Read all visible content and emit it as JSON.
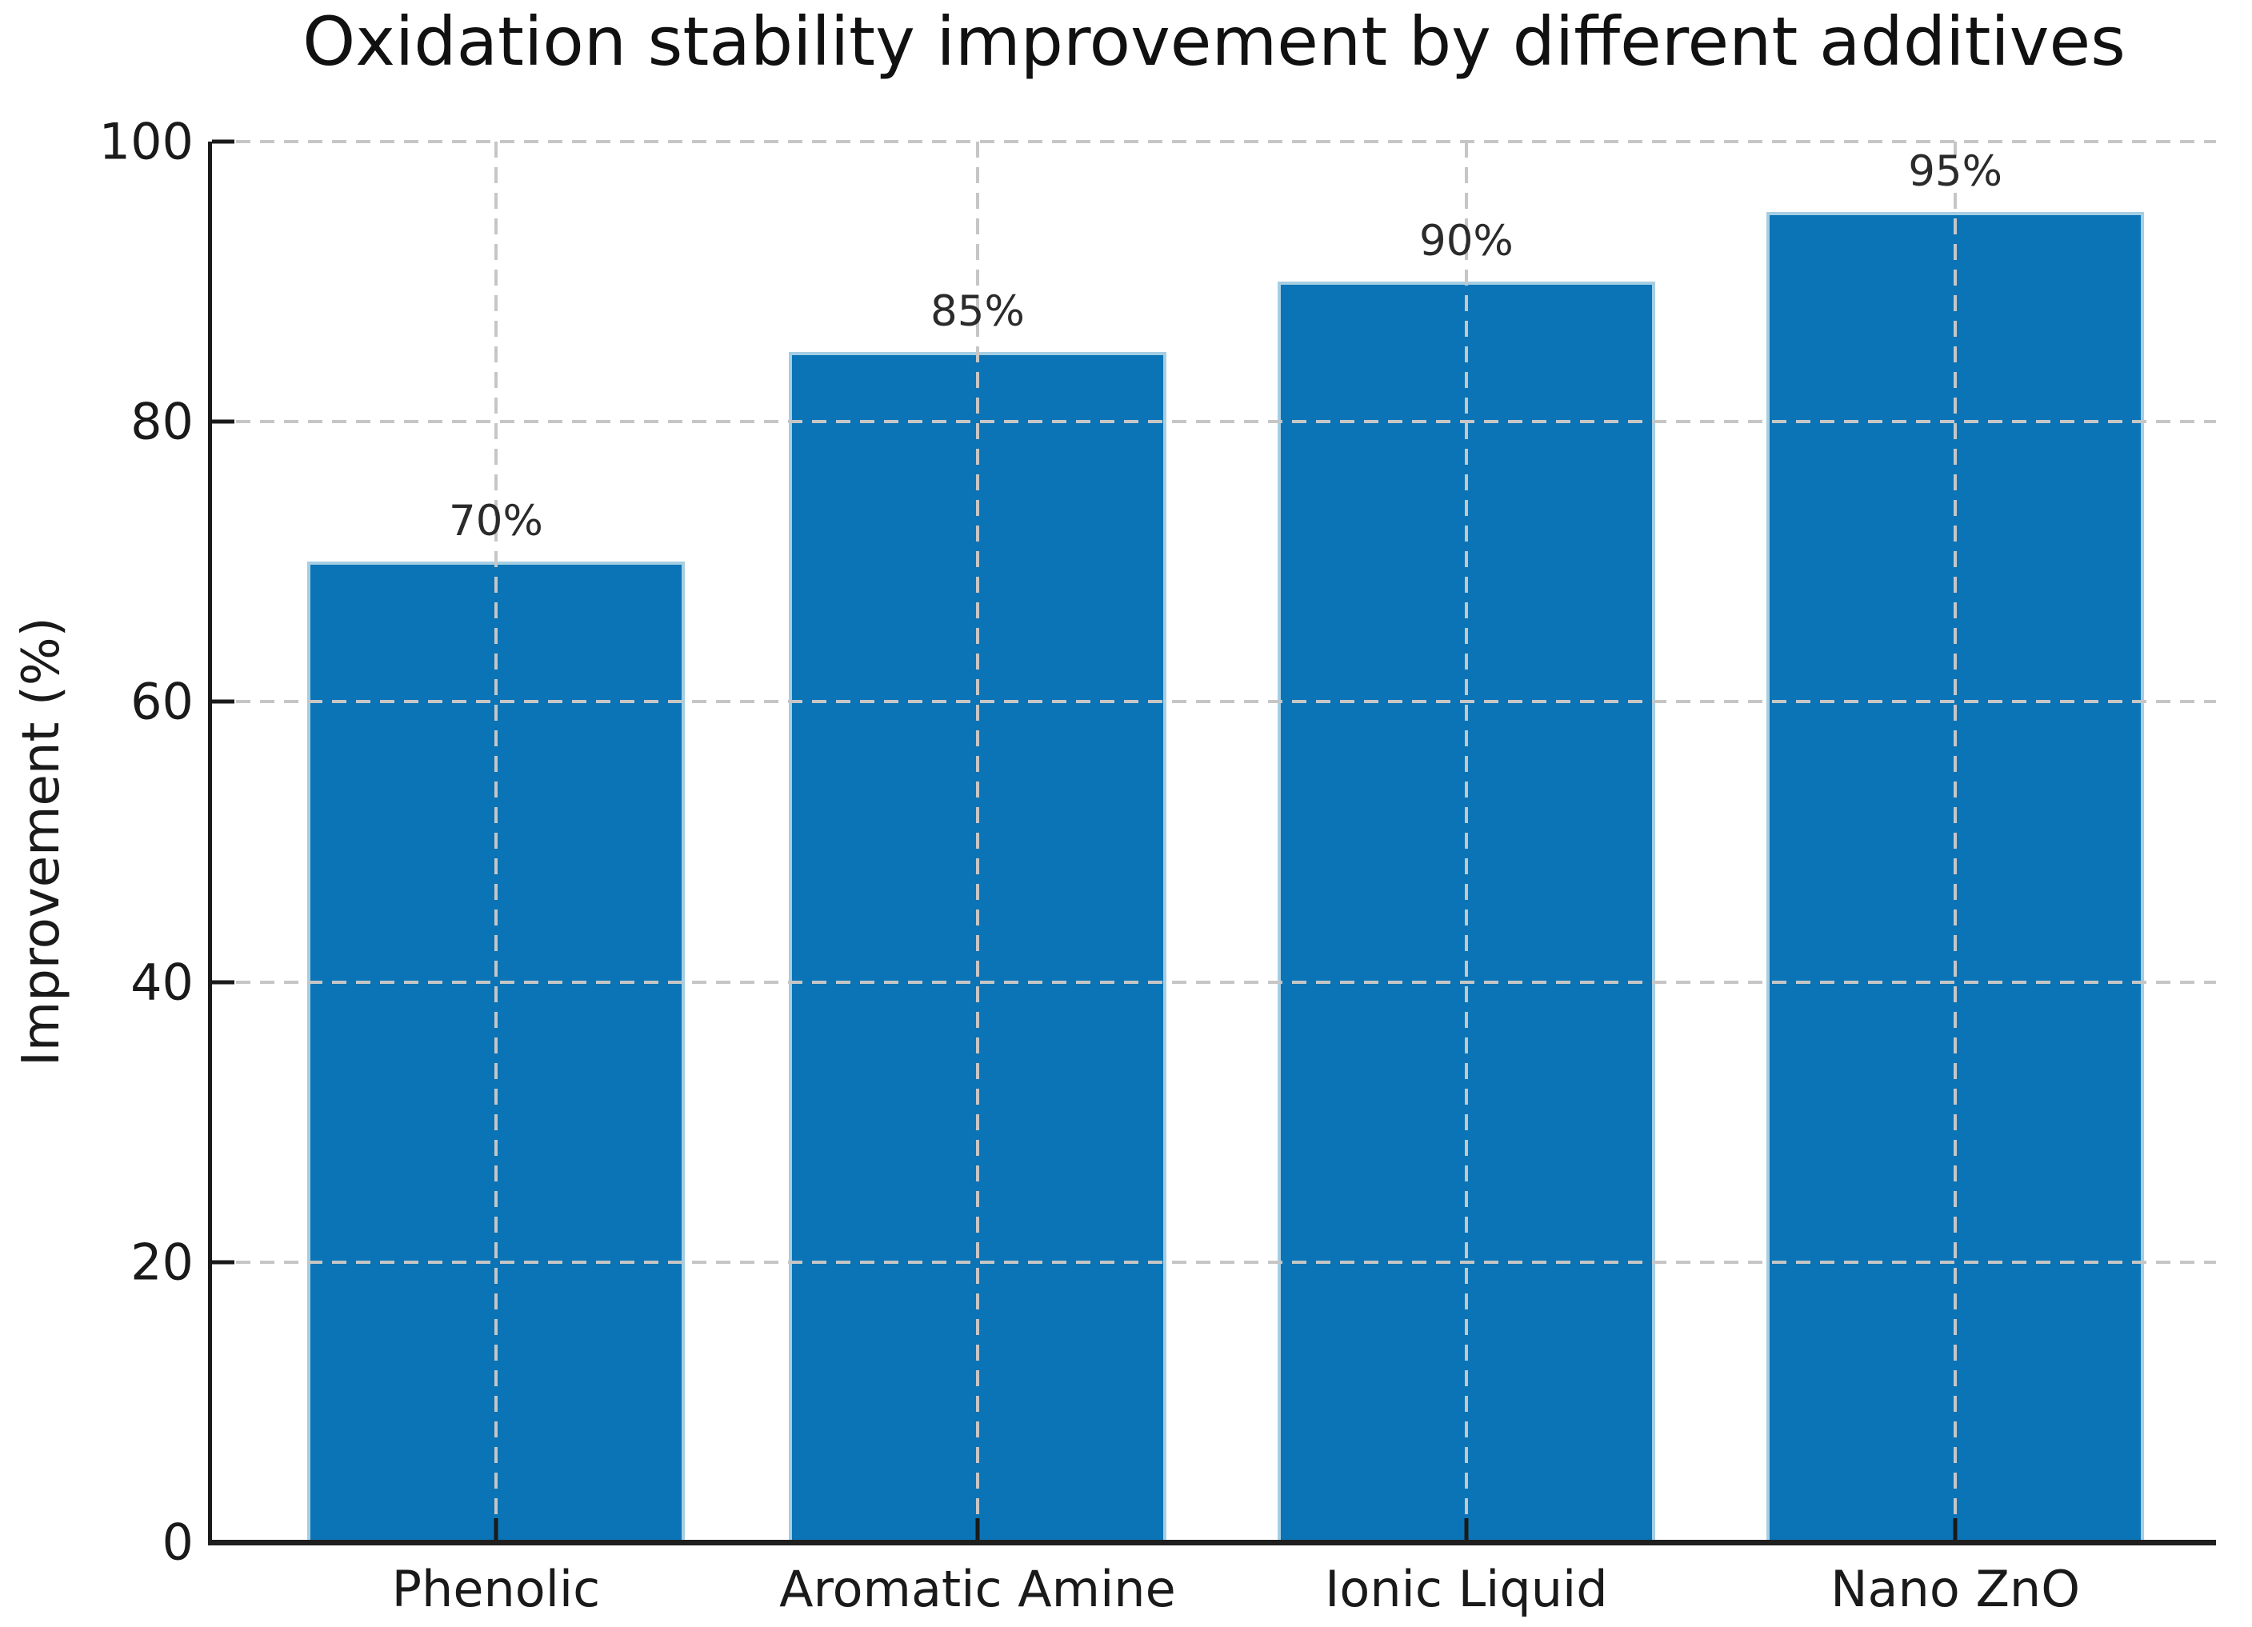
{
  "figure": {
    "background_color": "#ffffff"
  },
  "chart_data": {
    "type": "bar",
    "title": "Oxidation stability improvement by different additives",
    "categories": [
      "Phenolic",
      "Aromatic Amine",
      "Ionic Liquid",
      "Nano ZnO"
    ],
    "values": [
      70,
      85,
      90,
      95
    ],
    "bar_labels": [
      "70%",
      "85%",
      "90%",
      "95%"
    ],
    "xlabel": "",
    "ylabel": "Improvement (%)",
    "ylim": [
      0,
      100
    ],
    "yticks": [
      0,
      20,
      40,
      60,
      80,
      100
    ],
    "grid": "dashed gridlines on both axes, drawn over bars",
    "legend": "none",
    "colors": {
      "bar_fill": "#0b74b6",
      "bar_edge": "#a6cee3",
      "grid": "#c6c6c6",
      "spine": "#1a1a1a",
      "text": "#1a1a1a"
    }
  }
}
